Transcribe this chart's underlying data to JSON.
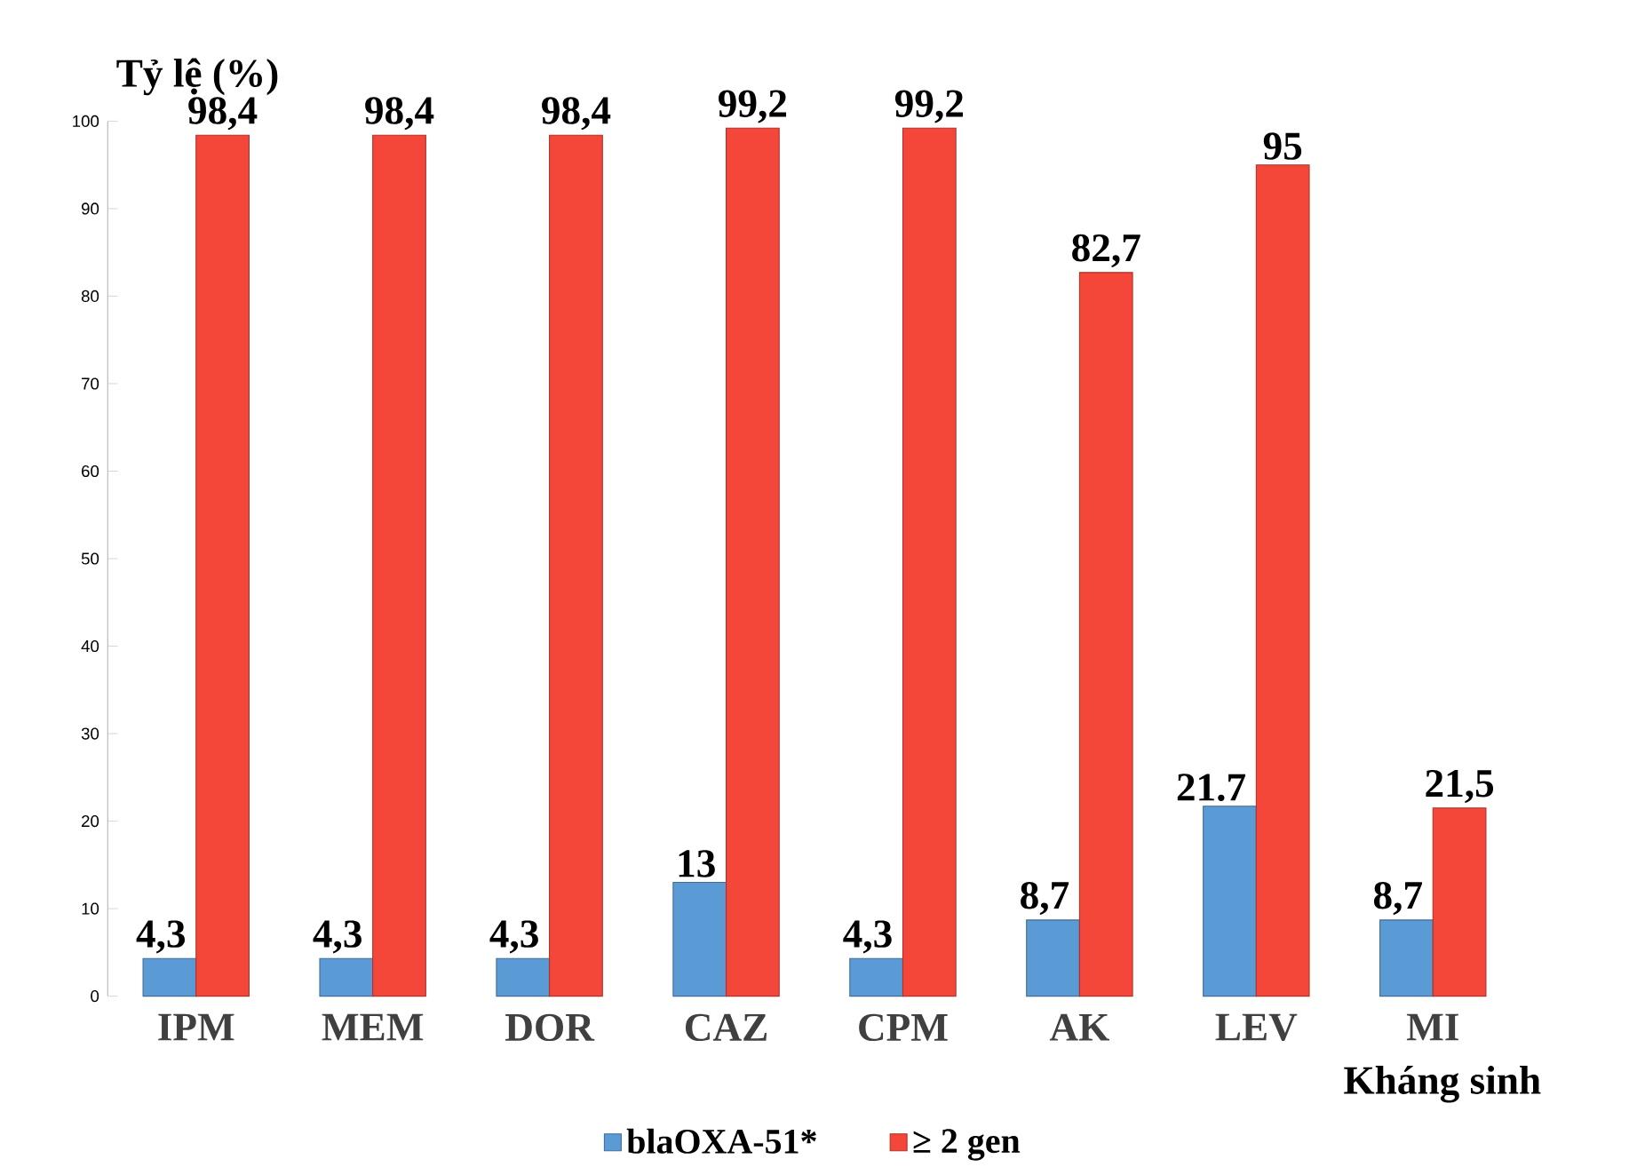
{
  "chart_data": {
    "type": "bar",
    "ylabel": "Tỷ lệ (%)",
    "xlabel": "Kháng sinh",
    "categories": [
      "IPM",
      "MEM",
      "DOR",
      "CAZ",
      "CPM",
      "AK",
      "LEV",
      "MI"
    ],
    "series": [
      {
        "name": "blaOXA-51*",
        "color": "#5b9bd5",
        "values": [
          4.3,
          4.3,
          4.3,
          13,
          4.3,
          8.7,
          21.7,
          8.7
        ],
        "value_labels": [
          "4,3",
          "4,3",
          "4,3",
          "13",
          "4,3",
          "8,7",
          "21.7",
          "8,7"
        ]
      },
      {
        "name": "≥ 2 gen",
        "color": "#f4473a",
        "values": [
          98.4,
          98.4,
          98.4,
          99.2,
          99.2,
          82.7,
          95,
          21.5
        ],
        "value_labels": [
          "98,4",
          "98,4",
          "98,4",
          "99,2",
          "99,2",
          "82,7",
          "95",
          "21,5"
        ]
      }
    ],
    "ylim": [
      0,
      100
    ],
    "yticks": [
      0,
      10,
      20,
      30,
      40,
      50,
      60,
      70,
      80,
      90,
      100
    ],
    "legend": "bottom"
  }
}
